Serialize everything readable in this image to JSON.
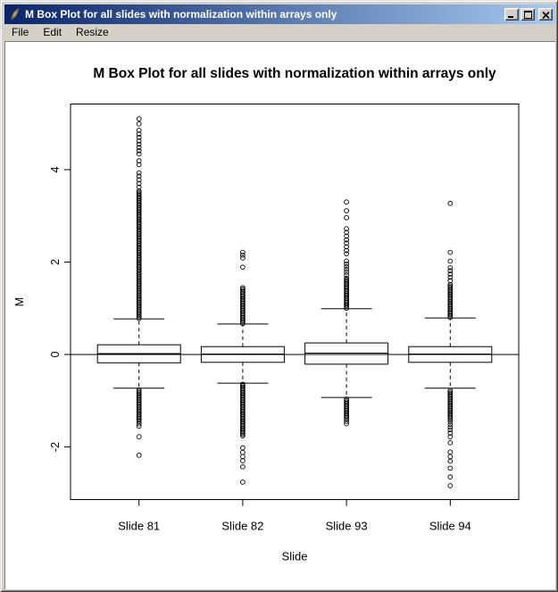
{
  "window": {
    "title": "M Box Plot for all slides with normalization within arrays only",
    "icons": {
      "app": "feather-icon",
      "minimize": "minimize-icon",
      "maximize": "maximize-icon",
      "close": "close-icon"
    }
  },
  "menu": {
    "items": [
      "File",
      "Edit",
      "Resize"
    ]
  },
  "chart_data": {
    "type": "boxplot",
    "title": "M Box Plot for all slides with normalization within arrays only",
    "xlabel": "Slide",
    "ylabel": "M",
    "yticks": [
      -2,
      0,
      2,
      4
    ],
    "ylim": [
      -3.14,
      5.42
    ],
    "zero_line": 0,
    "grid": false,
    "categories": [
      "Slide 81",
      "Slide 82",
      "Slide 93",
      "Slide 94"
    ],
    "series": [
      {
        "label": "Slide 81",
        "upper_whisker": 0.77,
        "q3": 0.21,
        "median": 0.02,
        "q1": -0.18,
        "lower_whisker": -0.73,
        "outliers_dense": [
          [
            0.78,
            3.55
          ],
          [
            -0.75,
            -1.45
          ]
        ],
        "outliers_upper": [
          3.62,
          3.7,
          3.78,
          3.86,
          3.93,
          4.11,
          4.19,
          4.34,
          4.41,
          4.48,
          4.55,
          4.62,
          4.7,
          4.77,
          4.85,
          4.99,
          5.1
        ],
        "outliers_lower": [
          -1.5,
          -1.55,
          -1.78,
          -2.18
        ]
      },
      {
        "label": "Slide 82",
        "upper_whisker": 0.66,
        "q3": 0.17,
        "median": 0.01,
        "q1": -0.17,
        "lower_whisker": -0.62,
        "outliers_dense": [
          [
            0.67,
            1.47
          ],
          [
            -0.63,
            -1.76
          ]
        ],
        "outliers_upper": [
          1.89,
          2.09,
          2.15,
          2.21
        ],
        "outliers_lower": [
          -2.02,
          -2.12,
          -2.21,
          -2.3,
          -2.43,
          -2.76
        ]
      },
      {
        "label": "Slide 93",
        "upper_whisker": 0.99,
        "q3": 0.25,
        "median": 0.03,
        "q1": -0.21,
        "lower_whisker": -0.93,
        "outliers_dense": [
          [
            1.0,
            1.66
          ],
          [
            -0.95,
            -1.4
          ]
        ],
        "outliers_upper": [
          1.72,
          1.78,
          1.84,
          1.9,
          1.96,
          2.02,
          2.18,
          2.25,
          2.33,
          2.41,
          2.48,
          2.56,
          2.64,
          2.72,
          2.96,
          3.11,
          3.3
        ],
        "outliers_lower": [
          -1.45,
          -1.5
        ]
      },
      {
        "label": "Slide 94",
        "upper_whisker": 0.79,
        "q3": 0.17,
        "median": 0.01,
        "q1": -0.17,
        "lower_whisker": -0.73,
        "outliers_dense": [
          [
            0.8,
            1.53
          ],
          [
            -0.75,
            -1.4
          ]
        ],
        "outliers_upper": [
          1.6,
          1.67,
          1.74,
          1.81,
          1.88,
          2.02,
          2.21,
          3.27
        ],
        "outliers_lower": [
          -1.45,
          -1.51,
          -1.57,
          -1.63,
          -1.7,
          -1.78,
          -1.91,
          -2.11,
          -2.21,
          -2.31,
          -2.46,
          -2.65,
          -2.84
        ]
      }
    ]
  }
}
